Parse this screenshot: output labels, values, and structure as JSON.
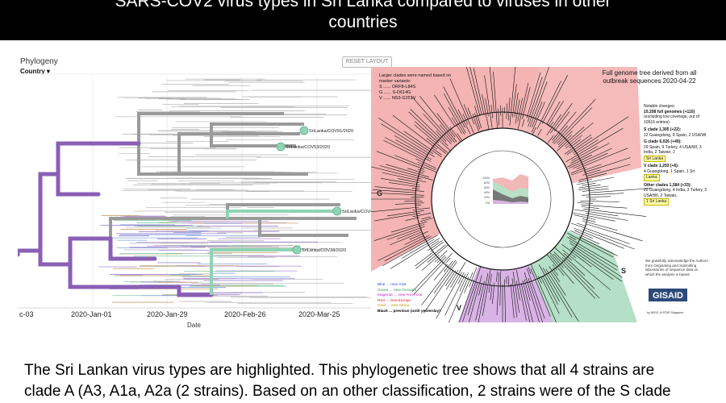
{
  "slide": {
    "title_line1": "SARS-COV2 virus types in Sri Lanka compared to viruses in other",
    "title_line2": "countries",
    "caption_line1": "The Sri Lankan virus types are highlighted. This phylogenetic tree shows that all 4 strains are",
    "caption_line2": "clade A (A3, A1a, A2a (2 strains). Based on an other classification, 2 strains were of the S clade"
  },
  "phylogeny": {
    "title": "Phylogeny",
    "color_by": "Country",
    "reset_label": "RESET LAYOUT",
    "axis_title": "Date",
    "ticks": [
      "c-03",
      "2020-Jan-01",
      "2020-Jan-29",
      "2020-Feb-26",
      "2020-Mar-25"
    ],
    "strain_labels": [
      "SriLanka/COV91/2020",
      "SriLanka/COV53/2020",
      "SriLanka/COV48",
      "SriLanka/COV38/2020"
    ],
    "colors": {
      "trunk": "#8a5fb5",
      "grey": "#9a9a9a",
      "highlight": "#8fd4b4"
    }
  },
  "radial": {
    "header": "Full genome tree derived from all outbreak sequences 2020-04-22",
    "clade_note_intro": "Larger clades were named based on marker variants:",
    "markers": [
      "S ...... ORF8-L84S",
      "G ...... S-D614G",
      "V ...... NS3-G251V"
    ],
    "notable_title": "Notable changes:",
    "notable_genomes": "10,208 full genomes (+110)",
    "notable_sub": "(excluding low coverage, out of 10916 entries)",
    "clade_s": "S clade 1,305 (+22):",
    "clade_s_detail": "12 Guangdong, 8 Spain, 2 USA/WI",
    "clade_g": "G clade 6,026 (+49):",
    "clade_g_detail": "29 Spain, 9 Turkey, 4 USA/WI, 3 India, 2 Taiwan, 2",
    "clade_g_badge": "Sri Lanka",
    "clade_v": "V clade 1,293 (+6):",
    "clade_v_detail": "4 Guangdong, 1 Spain, 1 Sri",
    "clade_v_badge": "Lanka",
    "clade_other": "Other clades 1,584 (+33):",
    "clade_other_detail": "20 Guangdong, 4 India, 3 Turkey, 3 USA/WI, 2 Taiwan,",
    "clade_other_badge": "1 Sri Lanka",
    "ack": "We gratefully acknowledge the Authors from Originating and Submitting laboratories of sequence data on which the analysis is based.",
    "legend": [
      "Blue ... new Asia",
      "Green ... new Oceania",
      "Magenta ... new Americas",
      "Red ... new Europe",
      "Gold ... new Africa",
      "Black ... previous (until yesterday)"
    ],
    "clade_letters": [
      "G",
      "S",
      "V"
    ],
    "gisaid": "GISAID",
    "gisaid_sub": "by BIIGS, A*STAR Singapore",
    "inset_ticks": [
      "100%",
      "80%",
      "60%",
      "40%",
      "20%",
      "0%"
    ],
    "colors": {
      "g_sector": "#f4b4b4",
      "s_sector": "#b5dfc6",
      "v_sector": "#d9b3e6"
    }
  }
}
